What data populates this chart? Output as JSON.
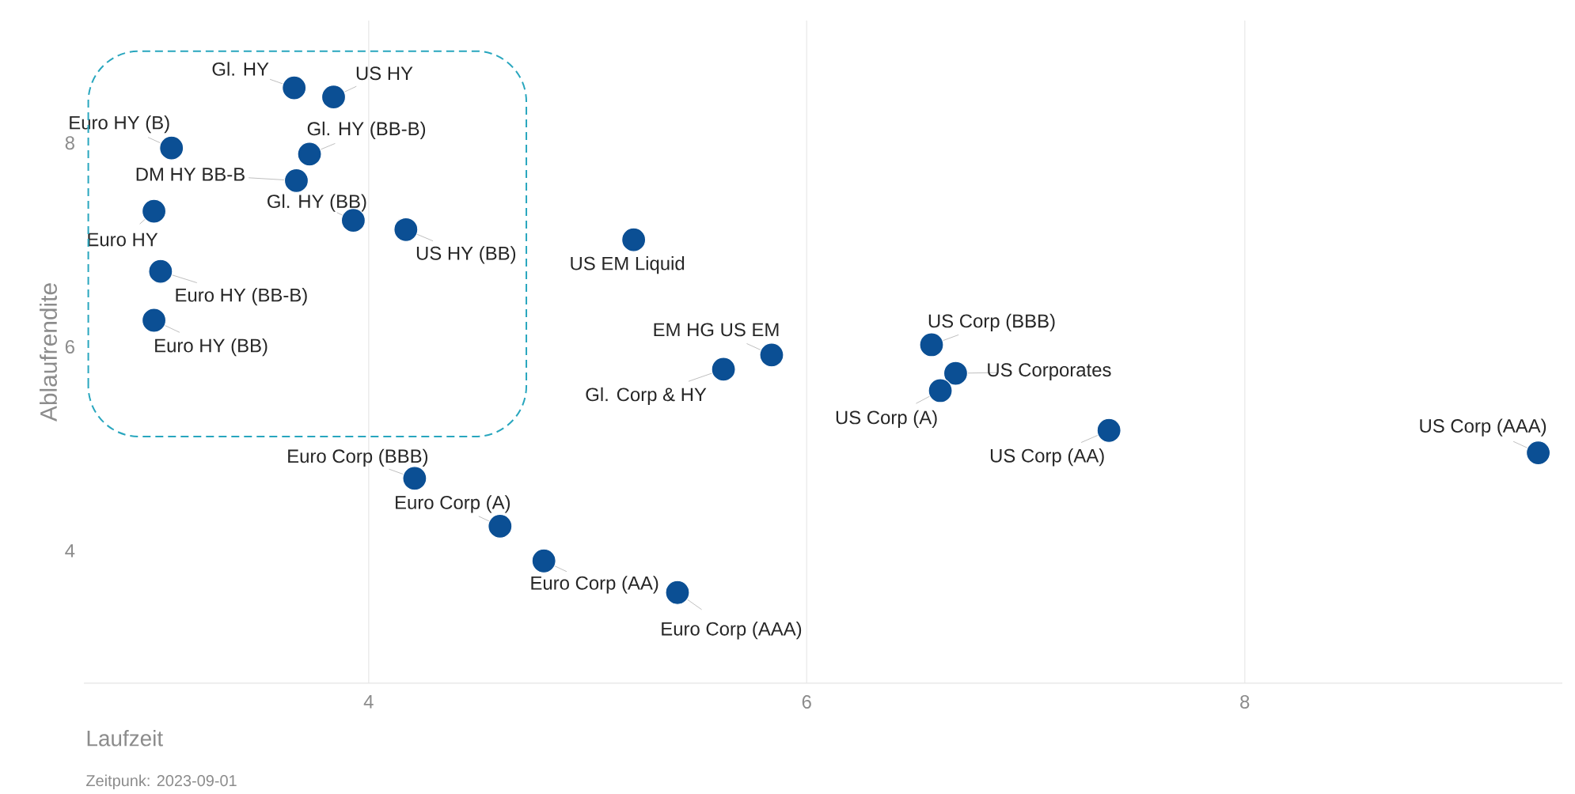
{
  "chart_data": {
    "type": "scatter",
    "xlabel": "Laufzeit",
    "ylabel": "Ablaufrendite",
    "x": [
      3.66,
      3.84,
      3.1,
      3.73,
      3.67,
      3.93,
      4.17,
      3.02,
      3.05,
      3.02,
      5.21,
      5.84,
      5.62,
      6.57,
      6.68,
      6.61,
      7.38,
      9.34,
      4.21,
      4.6,
      4.8,
      5.41
    ],
    "values": [
      8.54,
      8.45,
      7.95,
      7.89,
      7.63,
      7.24,
      7.15,
      7.33,
      6.74,
      6.26,
      7.05,
      5.92,
      5.78,
      6.02,
      5.74,
      5.57,
      5.18,
      4.96,
      4.71,
      4.24,
      3.9,
      3.59
    ],
    "color": "#0b4f94",
    "marker": "circle",
    "xlim": [
      2.7,
      9.45
    ],
    "ylim": [
      2.7,
      9.2
    ],
    "xticks": [
      4,
      6,
      8
    ],
    "yticks": [
      4,
      6,
      8
    ],
    "grid": "x",
    "annotations": [
      {
        "text": "Gl. HY",
        "x": 3.66,
        "y": 8.54
      },
      {
        "text": "US HY",
        "x": 3.84,
        "y": 8.45
      },
      {
        "text": "Euro HY (B)",
        "x": 3.1,
        "y": 7.95
      },
      {
        "text": "Gl. HY (BB-B)",
        "x": 3.73,
        "y": 7.89
      },
      {
        "text": "DM HY BB-B",
        "x": 3.67,
        "y": 7.63
      },
      {
        "text": "Gl. HY (BB)",
        "x": 3.93,
        "y": 7.24
      },
      {
        "text": "US HY (BB)",
        "x": 4.17,
        "y": 7.15
      },
      {
        "text": "Euro HY",
        "x": 3.02,
        "y": 7.33
      },
      {
        "text": "Euro HY (BB-B)",
        "x": 3.05,
        "y": 6.74
      },
      {
        "text": "Euro HY (BB)",
        "x": 3.02,
        "y": 6.26
      },
      {
        "text": "US EM Liquid",
        "x": 5.21,
        "y": 7.05
      },
      {
        "text": "EM HG US EM",
        "x": 5.84,
        "y": 5.92
      },
      {
        "text": "Gl. Corp & HY",
        "x": 5.62,
        "y": 5.78
      },
      {
        "text": "US Corp (BBB)",
        "x": 6.57,
        "y": 6.02
      },
      {
        "text": "US Corporates",
        "x": 6.68,
        "y": 5.74
      },
      {
        "text": "US Corp (A)",
        "x": 6.61,
        "y": 5.57
      },
      {
        "text": "US Corp (AA)",
        "x": 7.38,
        "y": 5.18
      },
      {
        "text": "US Corp (AAA)",
        "x": 9.34,
        "y": 4.96
      },
      {
        "text": "Euro Corp (BBB)",
        "x": 4.21,
        "y": 4.71
      },
      {
        "text": "Euro Corp (A)",
        "x": 4.6,
        "y": 4.24
      },
      {
        "text": "Euro Corp (AA)",
        "x": 4.8,
        "y": 3.9
      },
      {
        "text": "Euro Corp (AAA)",
        "x": 5.41,
        "y": 3.59
      },
      "Zeitpunk: 2023-09-01"
    ]
  }
}
